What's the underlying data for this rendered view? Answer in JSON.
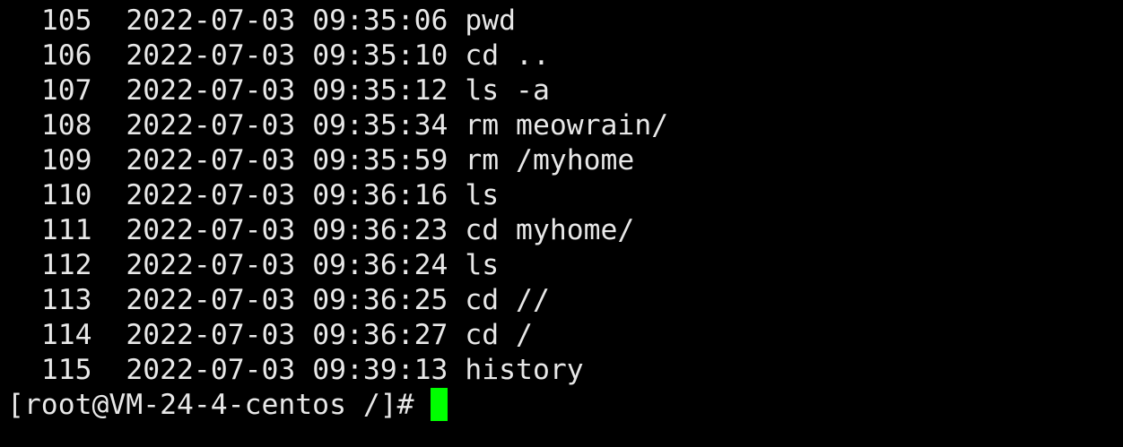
{
  "terminal": {
    "history": [
      {
        "num": "105",
        "date": "2022-07-03",
        "time": "09:35:06",
        "cmd": "pwd"
      },
      {
        "num": "106",
        "date": "2022-07-03",
        "time": "09:35:10",
        "cmd": "cd .."
      },
      {
        "num": "107",
        "date": "2022-07-03",
        "time": "09:35:12",
        "cmd": "ls -a"
      },
      {
        "num": "108",
        "date": "2022-07-03",
        "time": "09:35:34",
        "cmd": "rm meowrain/"
      },
      {
        "num": "109",
        "date": "2022-07-03",
        "time": "09:35:59",
        "cmd": "rm /myhome"
      },
      {
        "num": "110",
        "date": "2022-07-03",
        "time": "09:36:16",
        "cmd": "ls"
      },
      {
        "num": "111",
        "date": "2022-07-03",
        "time": "09:36:23",
        "cmd": "cd myhome/"
      },
      {
        "num": "112",
        "date": "2022-07-03",
        "time": "09:36:24",
        "cmd": "ls"
      },
      {
        "num": "113",
        "date": "2022-07-03",
        "time": "09:36:25",
        "cmd": "cd //"
      },
      {
        "num": "114",
        "date": "2022-07-03",
        "time": "09:36:27",
        "cmd": "cd /"
      },
      {
        "num": "115",
        "date": "2022-07-03",
        "time": "09:39:13",
        "cmd": "history"
      }
    ],
    "prompt": "[root@VM-24-4-centos /]# ",
    "cursor_color": "#00ff00",
    "text_color": "#e8e8e8",
    "background": "#000000"
  }
}
